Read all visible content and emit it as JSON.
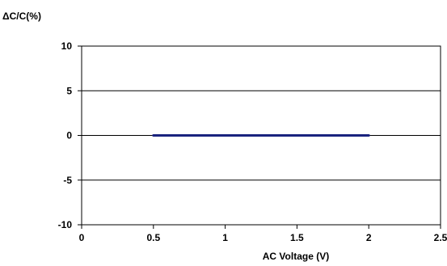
{
  "chart_data": {
    "type": "line",
    "title": "",
    "xlabel": "AC Voltage (V)",
    "ylabel": "ΔC/C(%)",
    "xlim": [
      0,
      2.5
    ],
    "ylim": [
      -10,
      10
    ],
    "x_ticks": [
      0,
      0.5,
      1,
      1.5,
      2,
      2.5
    ],
    "x_tick_labels": [
      "0",
      "0.5",
      "1",
      "1.5",
      "2",
      "2.5"
    ],
    "y_ticks": [
      -10,
      -5,
      0,
      5,
      10
    ],
    "y_tick_labels": [
      "-10",
      "-5",
      "0",
      "5",
      "10"
    ],
    "grid": "horizontal",
    "legend": "none",
    "series": [
      {
        "x": [
          0.5,
          1,
          1.5,
          2
        ],
        "y": [
          0,
          0,
          0,
          0
        ],
        "color": "#1a237e"
      }
    ]
  }
}
